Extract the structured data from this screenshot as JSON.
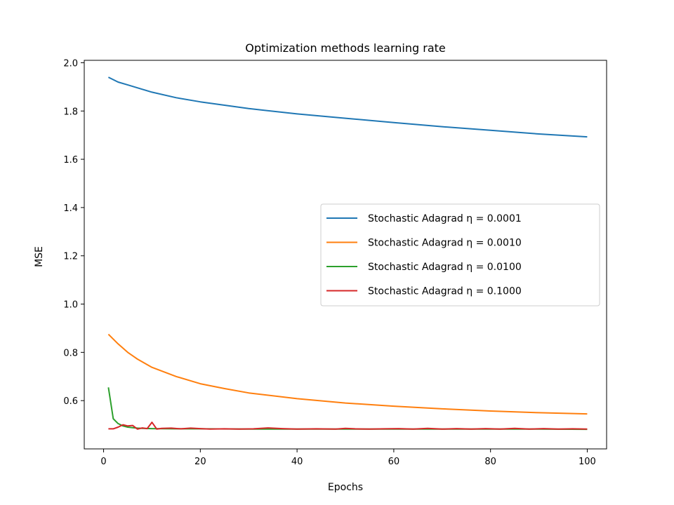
{
  "chart_data": {
    "type": "line",
    "title": "Optimization methods learning rate",
    "xlabel": "Epochs",
    "ylabel": "MSE",
    "xlim": [
      -4,
      104
    ],
    "ylim": [
      0.4,
      2.01
    ],
    "xticks": [
      0,
      20,
      40,
      60,
      80,
      100
    ],
    "yticks": [
      0.6,
      0.8,
      1.0,
      1.2,
      1.4,
      1.6,
      1.8,
      2.0
    ],
    "ytick_labels": [
      "0.6",
      "0.8",
      "1.0",
      "1.2",
      "1.4",
      "1.6",
      "1.8",
      "2.0"
    ],
    "grid": false,
    "legend_position": "center-right",
    "series": [
      {
        "name": "Stochastic Adagrad η = 0.0001",
        "color": "#1f77b4",
        "x": [
          1,
          3,
          5,
          8,
          10,
          15,
          20,
          25,
          30,
          40,
          50,
          60,
          70,
          80,
          90,
          100
        ],
        "values": [
          1.94,
          1.92,
          1.908,
          1.89,
          1.878,
          1.855,
          1.838,
          1.824,
          1.81,
          1.788,
          1.77,
          1.752,
          1.735,
          1.72,
          1.705,
          1.693
        ]
      },
      {
        "name": "Stochastic Adagrad η = 0.0010",
        "color": "#ff7f0e",
        "x": [
          1,
          3,
          5,
          7,
          10,
          15,
          20,
          25,
          30,
          40,
          50,
          60,
          70,
          80,
          90,
          100
        ],
        "values": [
          0.875,
          0.835,
          0.8,
          0.772,
          0.738,
          0.7,
          0.67,
          0.65,
          0.632,
          0.608,
          0.59,
          0.577,
          0.566,
          0.557,
          0.55,
          0.545
        ]
      },
      {
        "name": "Stochastic Adagrad η = 0.0100",
        "color": "#2ca02c",
        "x": [
          1,
          2,
          3,
          4,
          5,
          6,
          7,
          8,
          10,
          15,
          20,
          30,
          40,
          50,
          60,
          70,
          80,
          90,
          100
        ],
        "values": [
          0.655,
          0.525,
          0.505,
          0.495,
          0.49,
          0.488,
          0.486,
          0.485,
          0.484,
          0.483,
          0.483,
          0.482,
          0.482,
          0.482,
          0.482,
          0.482,
          0.482,
          0.482,
          0.481
        ]
      },
      {
        "name": "Stochastic Adagrad η = 0.1000",
        "color": "#d62728",
        "x": [
          1,
          2,
          3,
          4,
          5,
          6,
          7,
          8,
          9,
          10,
          11,
          12,
          14,
          16,
          18,
          20,
          22,
          25,
          28,
          31,
          34,
          37,
          40,
          44,
          48,
          50,
          52,
          55,
          58,
          61,
          64,
          67,
          70,
          73,
          76,
          79,
          82,
          85,
          88,
          91,
          94,
          97,
          100
        ],
        "values": [
          0.483,
          0.483,
          0.49,
          0.5,
          0.495,
          0.497,
          0.482,
          0.487,
          0.484,
          0.51,
          0.482,
          0.485,
          0.486,
          0.483,
          0.486,
          0.484,
          0.482,
          0.483,
          0.482,
          0.483,
          0.487,
          0.484,
          0.482,
          0.483,
          0.482,
          0.485,
          0.483,
          0.482,
          0.483,
          0.484,
          0.482,
          0.485,
          0.482,
          0.484,
          0.482,
          0.484,
          0.482,
          0.485,
          0.482,
          0.484,
          0.482,
          0.483,
          0.482
        ]
      }
    ]
  }
}
